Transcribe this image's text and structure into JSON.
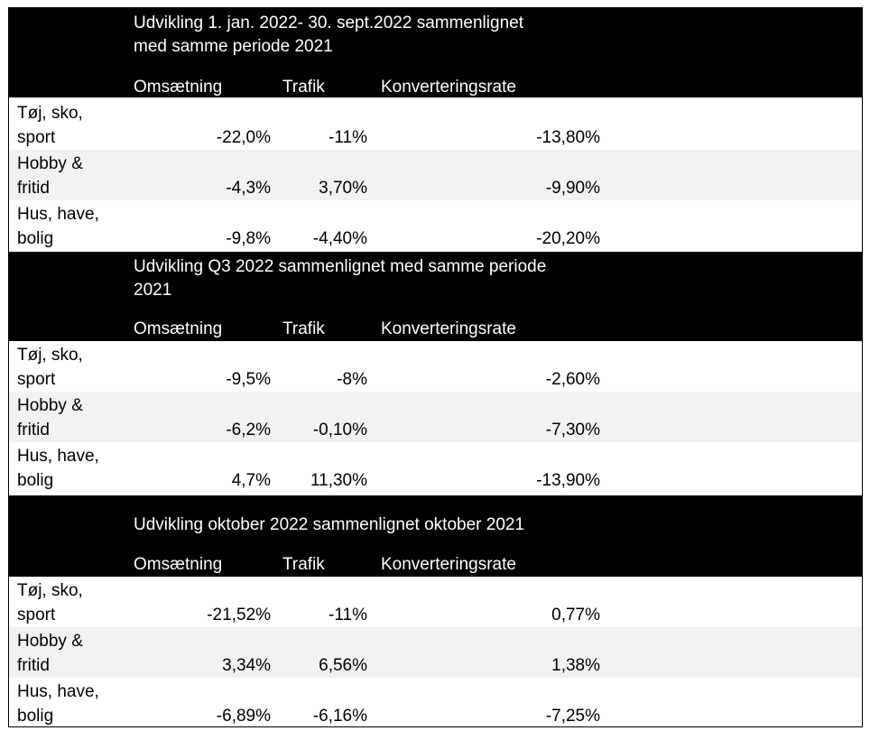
{
  "sections": [
    {
      "title": "Udvikling 1. jan. 2022- 30. sept.2022 sammenlignet\nmed samme periode 2021",
      "columns": [
        "Omsætning",
        "Trafik",
        "Konverteringsrate"
      ],
      "rows": [
        {
          "label": "Tøj, sko,\nsport",
          "values": [
            "-22,0%",
            "-11%",
            "-13,80%"
          ]
        },
        {
          "label": "Hobby &\nfritid",
          "values": [
            "-4,3%",
            "3,70%",
            "-9,90%"
          ]
        },
        {
          "label": "Hus, have,\nbolig",
          "values": [
            "-9,8%",
            "-4,40%",
            "-20,20%"
          ]
        }
      ]
    },
    {
      "title": "Udvikling Q3 2022 sammenlignet med samme periode\n2021",
      "columns": [
        "Omsætning",
        "Trafik",
        "Konverteringsrate"
      ],
      "rows": [
        {
          "label": "Tøj, sko,\nsport",
          "values": [
            "-9,5%",
            "-8%",
            "-2,60%"
          ]
        },
        {
          "label": "Hobby &\nfritid",
          "values": [
            "-6,2%",
            "-0,10%",
            "-7,30%"
          ]
        },
        {
          "label": "Hus, have,\nbolig",
          "values": [
            "4,7%",
            "11,30%",
            "-13,90%"
          ]
        }
      ]
    },
    {
      "title": "Udvikling oktober 2022 sammenlignet oktober 2021",
      "columns": [
        "Omsætning",
        "Trafik",
        "Konverteringsrate"
      ],
      "rows": [
        {
          "label": "Tøj, sko,\nsport",
          "values": [
            "-21,52%",
            "-11%",
            "0,77%"
          ]
        },
        {
          "label": "Hobby &\nfritid",
          "values": [
            "3,34%",
            "6,56%",
            "1,38%"
          ]
        },
        {
          "label": "Hus, have,\nbolig",
          "values": [
            "-6,89%",
            "-6,16%",
            "-7,25%"
          ]
        }
      ]
    }
  ]
}
